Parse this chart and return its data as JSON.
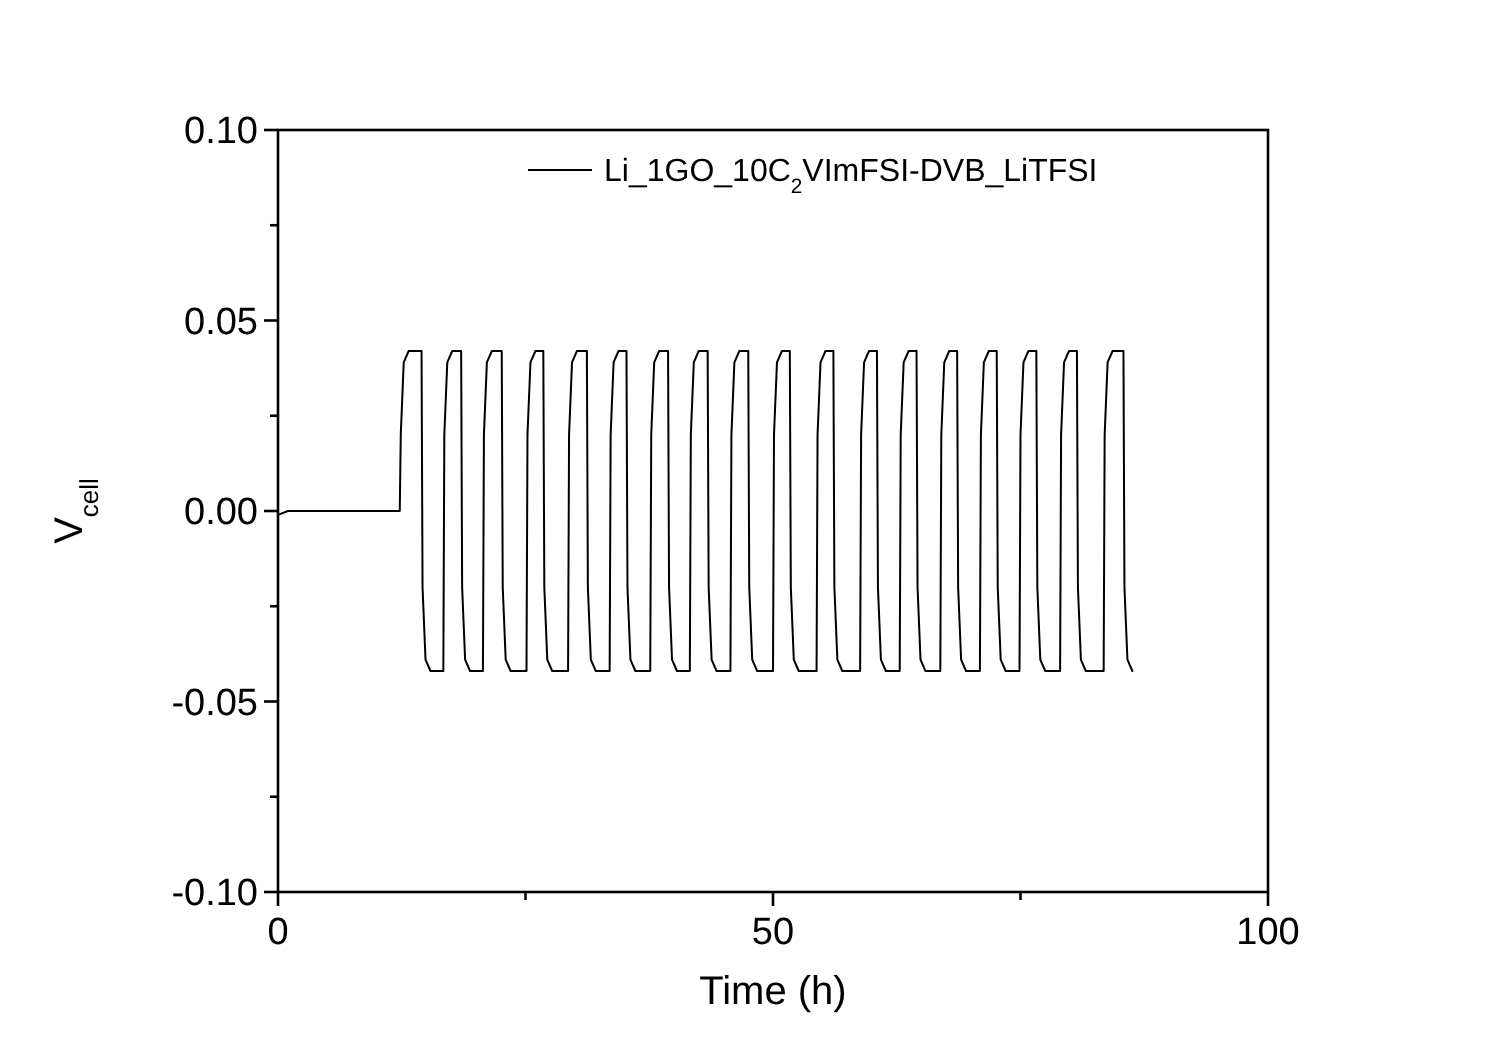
{
  "chart_data": {
    "type": "line",
    "xlabel": "Time (h)",
    "ylabel": "V$_{cell}$",
    "xlim": [
      0,
      100
    ],
    "xticks": [
      0,
      {
        "value": 25,
        "label": null
      },
      50,
      {
        "value": 75,
        "label": null
      },
      100
    ],
    "ylim": [
      -0.1,
      0.1
    ],
    "yticks": [
      {
        "value": -0.1,
        "label": "-0.10"
      },
      {
        "value": -0.075,
        "label": null
      },
      {
        "value": -0.05,
        "label": "-0.05"
      },
      {
        "value": -0.025,
        "label": null
      },
      {
        "value": 0,
        "label": "0.00"
      },
      {
        "value": 0.025,
        "label": null
      },
      {
        "value": 0.05,
        "label": "0.05"
      },
      {
        "value": 0.075,
        "label": null
      },
      {
        "value": 0.1,
        "label": "0.10"
      }
    ],
    "grid": false,
    "legend": "top right",
    "marker": "none",
    "line_style": "solid",
    "series": [
      {
        "name": "Li_1GO_10C$_{2}$VImFSI-DVB_LiTFSI",
        "color": "#000000",
        "x": [
          0,
          1,
          12.3,
          12.4,
          12.7,
          13.2,
          14.5,
          14.6,
          14.9,
          15.4,
          16.7,
          16.8,
          17.1,
          17.6,
          18.5,
          18.6,
          18.9,
          19.4,
          20.7,
          20.8,
          21.1,
          21.6,
          22.6,
          22.7,
          23.0,
          23.5,
          25.1,
          25.2,
          25.5,
          26.0,
          26.8,
          26.9,
          27.2,
          27.7,
          29.3,
          29.4,
          29.7,
          30.2,
          31.2,
          31.3,
          31.6,
          32.1,
          33.5,
          33.6,
          33.9,
          34.4,
          35.2,
          35.3,
          35.6,
          36.1,
          37.6,
          37.7,
          38.0,
          38.5,
          39.4,
          39.5,
          39.8,
          40.3,
          41.6,
          41.7,
          42.0,
          42.5,
          43.4,
          43.5,
          43.8,
          44.3,
          45.7,
          45.8,
          46.1,
          46.6,
          47.5,
          47.6,
          47.9,
          48.4,
          50.0,
          50.1,
          50.4,
          50.9,
          51.7,
          51.8,
          52.1,
          52.6,
          54.4,
          54.5,
          54.8,
          55.3,
          56.1,
          56.2,
          56.5,
          57.0,
          58.8,
          58.9,
          59.2,
          59.7,
          60.5,
          60.6,
          60.9,
          61.4,
          62.8,
          62.9,
          63.2,
          63.7,
          64.5,
          64.6,
          64.9,
          65.4,
          66.9,
          67.0,
          67.3,
          67.8,
          68.6,
          68.7,
          69.0,
          69.5,
          70.9,
          71.0,
          71.3,
          71.8,
          72.6,
          72.7,
          73.0,
          73.5,
          74.9,
          75.0,
          75.3,
          75.8,
          76.6,
          76.7,
          77.0,
          77.5,
          79.0,
          79.1,
          79.4,
          79.9,
          80.7,
          80.8,
          81.1,
          81.6,
          83.4,
          83.5,
          83.8,
          84.3,
          85.4,
          85.5,
          85.8,
          86.3
        ],
        "values": [
          -0.001,
          0.0,
          0.0,
          0.02,
          0.039,
          0.042,
          0.042,
          -0.02,
          -0.039,
          -0.042,
          -0.042,
          0.02,
          0.039,
          0.042,
          0.042,
          -0.02,
          -0.039,
          -0.042,
          -0.042,
          0.02,
          0.039,
          0.042,
          0.042,
          -0.02,
          -0.039,
          -0.042,
          -0.042,
          0.02,
          0.039,
          0.042,
          0.042,
          -0.02,
          -0.039,
          -0.042,
          -0.042,
          0.02,
          0.039,
          0.042,
          0.042,
          -0.02,
          -0.039,
          -0.042,
          -0.042,
          0.02,
          0.039,
          0.042,
          0.042,
          -0.02,
          -0.039,
          -0.042,
          -0.042,
          0.02,
          0.039,
          0.042,
          0.042,
          -0.02,
          -0.039,
          -0.042,
          -0.042,
          0.02,
          0.039,
          0.042,
          0.042,
          -0.02,
          -0.039,
          -0.042,
          -0.042,
          0.02,
          0.039,
          0.042,
          0.042,
          -0.02,
          -0.039,
          -0.042,
          -0.042,
          0.02,
          0.039,
          0.042,
          0.042,
          -0.02,
          -0.039,
          -0.042,
          -0.042,
          0.02,
          0.039,
          0.042,
          0.042,
          -0.02,
          -0.039,
          -0.042,
          -0.042,
          0.02,
          0.039,
          0.042,
          0.042,
          -0.02,
          -0.039,
          -0.042,
          -0.042,
          0.02,
          0.039,
          0.042,
          0.042,
          -0.02,
          -0.039,
          -0.042,
          -0.042,
          0.02,
          0.039,
          0.042,
          0.042,
          -0.02,
          -0.039,
          -0.042,
          -0.042,
          0.02,
          0.039,
          0.042,
          0.042,
          -0.02,
          -0.039,
          -0.042,
          -0.042,
          0.02,
          0.039,
          0.042,
          0.042,
          -0.02,
          -0.039,
          -0.042,
          -0.042,
          0.02,
          0.039,
          0.042,
          0.042,
          -0.02,
          -0.039,
          -0.042,
          -0.042,
          0.02,
          0.039,
          0.042,
          0.042,
          -0.02,
          -0.039,
          -0.042
        ]
      }
    ]
  }
}
